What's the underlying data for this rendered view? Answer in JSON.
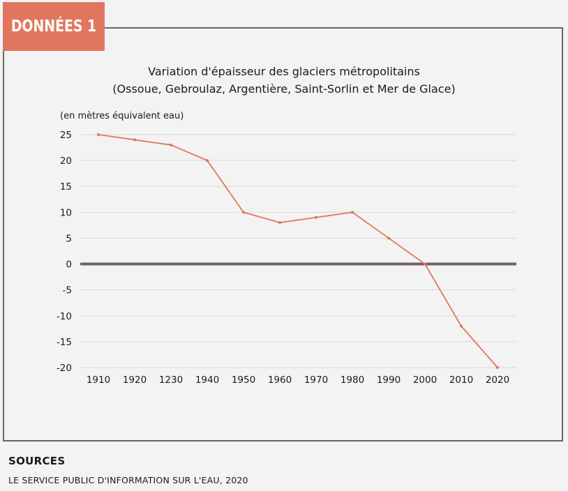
{
  "badge": "DONNÉES 1",
  "chart_data": {
    "type": "line",
    "title_lines": [
      "Variation d'épaisseur des glaciers métropolitains",
      "(Ossoue, Gebroulaz, Argentière, Saint-Sorlin et Mer de Glace)"
    ],
    "ylabel": "(en mètres équivalent eau)",
    "categories": [
      "1910",
      "1920",
      "1230",
      "1940",
      "1950",
      "1960",
      "1970",
      "1980",
      "1990",
      "2000",
      "2010",
      "2020"
    ],
    "values": [
      25,
      24,
      23,
      20,
      10,
      8,
      9,
      10,
      5,
      0,
      -12,
      -20
    ],
    "ylim": [
      -20,
      25
    ],
    "yticks": [
      25,
      20,
      15,
      10,
      5,
      0,
      -5,
      -10,
      -15,
      -20
    ],
    "grid": true,
    "line_color": "#e0765d",
    "zero_line_color": "#6e6360"
  },
  "sources": {
    "heading": "SOURCES",
    "text": "LE SERVICE PUBLIC D'INFORMATION SUR L'EAU, 2020"
  }
}
